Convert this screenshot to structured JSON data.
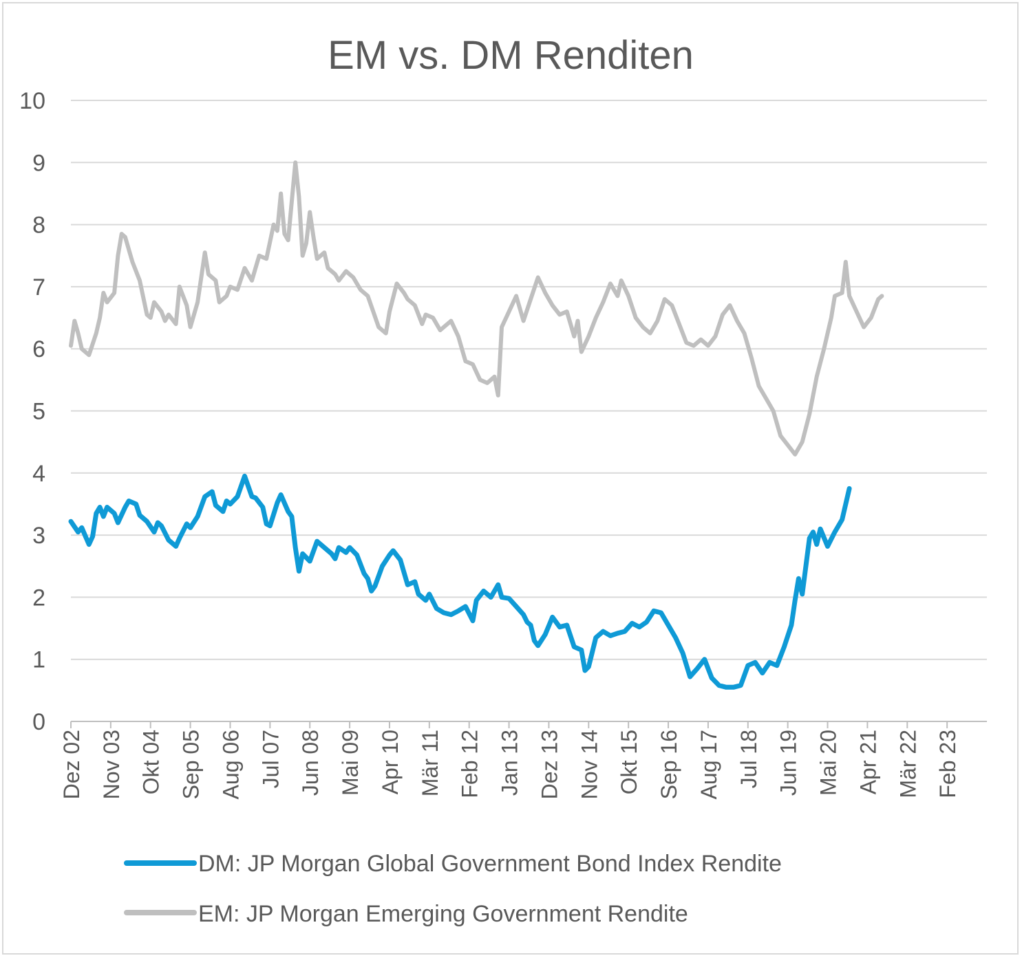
{
  "chart_data": {
    "type": "line",
    "title": "EM vs. DM Renditen",
    "xlabel": "",
    "ylabel": "",
    "ylim": [
      0,
      10
    ],
    "yticks": [
      0,
      1,
      2,
      3,
      4,
      5,
      6,
      7,
      8,
      9,
      10
    ],
    "grid": true,
    "legend_position": "bottom",
    "x_range": [
      "2002-12",
      "2024-01"
    ],
    "x_tick_labels": [
      {
        "label": "Dez 02",
        "date": "2002-12"
      },
      {
        "label": "Nov 03",
        "date": "2003-11"
      },
      {
        "label": "Okt 04",
        "date": "2004-10"
      },
      {
        "label": "Sep 05",
        "date": "2005-09"
      },
      {
        "label": "Aug 06",
        "date": "2006-08"
      },
      {
        "label": "Jul 07",
        "date": "2007-07"
      },
      {
        "label": "Jun 08",
        "date": "2008-06"
      },
      {
        "label": "Mai 09",
        "date": "2009-05"
      },
      {
        "label": "Apr 10",
        "date": "2010-04"
      },
      {
        "label": "Mär 11",
        "date": "2011-03"
      },
      {
        "label": "Feb 12",
        "date": "2012-02"
      },
      {
        "label": "Jan 13",
        "date": "2013-01"
      },
      {
        "label": "Dez 13",
        "date": "2013-12"
      },
      {
        "label": "Nov 14",
        "date": "2014-11"
      },
      {
        "label": "Okt 15",
        "date": "2015-10"
      },
      {
        "label": "Sep 16",
        "date": "2016-09"
      },
      {
        "label": "Aug 17",
        "date": "2017-08"
      },
      {
        "label": "Jul 18",
        "date": "2018-07"
      },
      {
        "label": "Jun 19",
        "date": "2019-06"
      },
      {
        "label": "Mai 20",
        "date": "2020-05"
      },
      {
        "label": "Apr 21",
        "date": "2021-04"
      },
      {
        "label": "Mär 22",
        "date": "2022-03"
      },
      {
        "label": "Feb 23",
        "date": "2023-02"
      }
    ],
    "series": [
      {
        "name": "DM: JP Morgan Global Government Bond Index Rendite",
        "color": "#0f9ad6",
        "points": [
          [
            "2002-12",
            3.22
          ],
          [
            "2003-02",
            3.05
          ],
          [
            "2003-03",
            3.12
          ],
          [
            "2003-05",
            2.85
          ],
          [
            "2003-06",
            2.98
          ],
          [
            "2003-07",
            3.35
          ],
          [
            "2003-08",
            3.45
          ],
          [
            "2003-09",
            3.3
          ],
          [
            "2003-10",
            3.45
          ],
          [
            "2003-12",
            3.35
          ],
          [
            "2004-01",
            3.2
          ],
          [
            "2004-03",
            3.45
          ],
          [
            "2004-04",
            3.55
          ],
          [
            "2004-06",
            3.5
          ],
          [
            "2004-07",
            3.32
          ],
          [
            "2004-09",
            3.22
          ],
          [
            "2004-11",
            3.05
          ],
          [
            "2004-12",
            3.2
          ],
          [
            "2005-01",
            3.15
          ],
          [
            "2005-03",
            2.92
          ],
          [
            "2005-05",
            2.82
          ],
          [
            "2005-06",
            2.95
          ],
          [
            "2005-08",
            3.18
          ],
          [
            "2005-09",
            3.12
          ],
          [
            "2005-11",
            3.3
          ],
          [
            "2006-01",
            3.62
          ],
          [
            "2006-03",
            3.7
          ],
          [
            "2006-04",
            3.48
          ],
          [
            "2006-06",
            3.38
          ],
          [
            "2006-07",
            3.55
          ],
          [
            "2006-08",
            3.5
          ],
          [
            "2006-10",
            3.62
          ],
          [
            "2006-12",
            3.95
          ],
          [
            "2007-02",
            3.62
          ],
          [
            "2007-03",
            3.6
          ],
          [
            "2007-05",
            3.45
          ],
          [
            "2007-06",
            3.18
          ],
          [
            "2007-07",
            3.15
          ],
          [
            "2007-09",
            3.52
          ],
          [
            "2007-10",
            3.65
          ],
          [
            "2007-12",
            3.38
          ],
          [
            "2008-01",
            3.3
          ],
          [
            "2008-02",
            2.8
          ],
          [
            "2008-03",
            2.42
          ],
          [
            "2008-04",
            2.7
          ],
          [
            "2008-06",
            2.58
          ],
          [
            "2008-08",
            2.9
          ],
          [
            "2008-10",
            2.8
          ],
          [
            "2008-12",
            2.7
          ],
          [
            "2009-01",
            2.62
          ],
          [
            "2009-02",
            2.8
          ],
          [
            "2009-04",
            2.72
          ],
          [
            "2009-05",
            2.8
          ],
          [
            "2009-07",
            2.68
          ],
          [
            "2009-09",
            2.38
          ],
          [
            "2009-10",
            2.3
          ],
          [
            "2009-11",
            2.1
          ],
          [
            "2009-12",
            2.18
          ],
          [
            "2010-02",
            2.5
          ],
          [
            "2010-04",
            2.68
          ],
          [
            "2010-05",
            2.75
          ],
          [
            "2010-07",
            2.6
          ],
          [
            "2010-09",
            2.2
          ],
          [
            "2010-11",
            2.25
          ],
          [
            "2010-12",
            2.05
          ],
          [
            "2011-02",
            1.95
          ],
          [
            "2011-03",
            2.05
          ],
          [
            "2011-05",
            1.82
          ],
          [
            "2011-07",
            1.75
          ],
          [
            "2011-09",
            1.72
          ],
          [
            "2011-11",
            1.78
          ],
          [
            "2012-01",
            1.85
          ],
          [
            "2012-03",
            1.62
          ],
          [
            "2012-04",
            1.95
          ],
          [
            "2012-06",
            2.1
          ],
          [
            "2012-08",
            2.0
          ],
          [
            "2012-10",
            2.2
          ],
          [
            "2012-11",
            2.0
          ],
          [
            "2013-01",
            1.98
          ],
          [
            "2013-03",
            1.85
          ],
          [
            "2013-05",
            1.72
          ],
          [
            "2013-06",
            1.6
          ],
          [
            "2013-07",
            1.55
          ],
          [
            "2013-08",
            1.3
          ],
          [
            "2013-09",
            1.22
          ],
          [
            "2013-11",
            1.4
          ],
          [
            "2014-01",
            1.68
          ],
          [
            "2014-03",
            1.52
          ],
          [
            "2014-05",
            1.55
          ],
          [
            "2014-07",
            1.2
          ],
          [
            "2014-09",
            1.15
          ],
          [
            "2014-10",
            0.82
          ],
          [
            "2014-11",
            0.88
          ],
          [
            "2015-01",
            1.35
          ],
          [
            "2015-03",
            1.45
          ],
          [
            "2015-05",
            1.38
          ],
          [
            "2015-07",
            1.42
          ],
          [
            "2015-09",
            1.45
          ],
          [
            "2015-11",
            1.58
          ],
          [
            "2016-01",
            1.52
          ],
          [
            "2016-03",
            1.6
          ],
          [
            "2016-05",
            1.78
          ],
          [
            "2016-07",
            1.75
          ],
          [
            "2016-09",
            1.55
          ],
          [
            "2016-11",
            1.35
          ],
          [
            "2017-01",
            1.1
          ],
          [
            "2017-03",
            0.72
          ],
          [
            "2017-05",
            0.85
          ],
          [
            "2017-07",
            1.0
          ],
          [
            "2017-09",
            0.7
          ],
          [
            "2017-11",
            0.58
          ],
          [
            "2018-01",
            0.55
          ],
          [
            "2018-03",
            0.55
          ],
          [
            "2018-05",
            0.58
          ],
          [
            "2018-07",
            0.9
          ],
          [
            "2018-09",
            0.95
          ],
          [
            "2018-11",
            0.78
          ],
          [
            "2019-01",
            0.95
          ],
          [
            "2019-03",
            0.9
          ],
          [
            "2019-05",
            1.2
          ],
          [
            "2019-07",
            1.55
          ],
          [
            "2019-08",
            1.95
          ],
          [
            "2019-09",
            2.3
          ],
          [
            "2019-10",
            2.05
          ],
          [
            "2019-12",
            2.95
          ],
          [
            "2020-01",
            3.05
          ],
          [
            "2020-02",
            2.85
          ],
          [
            "2020-03",
            3.1
          ],
          [
            "2020-05",
            2.82
          ],
          [
            "2020-07",
            3.05
          ],
          [
            "2020-09",
            3.25
          ],
          [
            "2020-11",
            3.75
          ]
        ]
      },
      {
        "name": "EM: JP Morgan Emerging Government Rendite",
        "color": "#bfbfbf",
        "points": [
          [
            "2002-12",
            6.05
          ],
          [
            "2003-01",
            6.45
          ],
          [
            "2003-02",
            6.25
          ],
          [
            "2003-03",
            6.0
          ],
          [
            "2003-05",
            5.9
          ],
          [
            "2003-07",
            6.25
          ],
          [
            "2003-08",
            6.5
          ],
          [
            "2003-09",
            6.9
          ],
          [
            "2003-10",
            6.75
          ],
          [
            "2003-12",
            6.9
          ],
          [
            "2004-01",
            7.5
          ],
          [
            "2004-02",
            7.85
          ],
          [
            "2004-03",
            7.8
          ],
          [
            "2004-05",
            7.4
          ],
          [
            "2004-07",
            7.1
          ],
          [
            "2004-09",
            6.55
          ],
          [
            "2004-10",
            6.5
          ],
          [
            "2004-11",
            6.75
          ],
          [
            "2005-01",
            6.6
          ],
          [
            "2005-02",
            6.45
          ],
          [
            "2005-03",
            6.55
          ],
          [
            "2005-05",
            6.4
          ],
          [
            "2005-06",
            7.0
          ],
          [
            "2005-08",
            6.7
          ],
          [
            "2005-09",
            6.35
          ],
          [
            "2005-11",
            6.75
          ],
          [
            "2006-01",
            7.55
          ],
          [
            "2006-02",
            7.2
          ],
          [
            "2006-04",
            7.1
          ],
          [
            "2006-05",
            6.75
          ],
          [
            "2006-07",
            6.85
          ],
          [
            "2006-08",
            7.0
          ],
          [
            "2006-10",
            6.95
          ],
          [
            "2006-12",
            7.3
          ],
          [
            "2007-02",
            7.1
          ],
          [
            "2007-04",
            7.5
          ],
          [
            "2007-06",
            7.45
          ],
          [
            "2007-08",
            8.0
          ],
          [
            "2007-09",
            7.9
          ],
          [
            "2007-10",
            8.5
          ],
          [
            "2007-11",
            7.85
          ],
          [
            "2007-12",
            7.75
          ],
          [
            "2008-02",
            9.0
          ],
          [
            "2008-03",
            8.45
          ],
          [
            "2008-04",
            7.5
          ],
          [
            "2008-05",
            7.7
          ],
          [
            "2008-06",
            8.2
          ],
          [
            "2008-07",
            7.8
          ],
          [
            "2008-08",
            7.45
          ],
          [
            "2008-10",
            7.55
          ],
          [
            "2008-11",
            7.3
          ],
          [
            "2009-01",
            7.2
          ],
          [
            "2009-02",
            7.1
          ],
          [
            "2009-04",
            7.25
          ],
          [
            "2009-06",
            7.15
          ],
          [
            "2009-08",
            6.95
          ],
          [
            "2009-10",
            6.85
          ],
          [
            "2010-01",
            6.35
          ],
          [
            "2010-03",
            6.25
          ],
          [
            "2010-04",
            6.6
          ],
          [
            "2010-06",
            7.05
          ],
          [
            "2010-08",
            6.9
          ],
          [
            "2010-09",
            6.8
          ],
          [
            "2010-11",
            6.7
          ],
          [
            "2011-01",
            6.4
          ],
          [
            "2011-02",
            6.55
          ],
          [
            "2011-04",
            6.5
          ],
          [
            "2011-06",
            6.3
          ],
          [
            "2011-08",
            6.4
          ],
          [
            "2011-09",
            6.45
          ],
          [
            "2011-11",
            6.2
          ],
          [
            "2012-01",
            5.8
          ],
          [
            "2012-03",
            5.75
          ],
          [
            "2012-05",
            5.5
          ],
          [
            "2012-07",
            5.45
          ],
          [
            "2012-09",
            5.55
          ],
          [
            "2012-10",
            5.25
          ],
          [
            "2012-11",
            6.35
          ],
          [
            "2013-01",
            6.6
          ],
          [
            "2013-03",
            6.85
          ],
          [
            "2013-05",
            6.45
          ],
          [
            "2013-07",
            6.8
          ],
          [
            "2013-09",
            7.15
          ],
          [
            "2013-11",
            6.9
          ],
          [
            "2014-01",
            6.7
          ],
          [
            "2014-03",
            6.55
          ],
          [
            "2014-05",
            6.6
          ],
          [
            "2014-07",
            6.2
          ],
          [
            "2014-08",
            6.45
          ],
          [
            "2014-09",
            5.95
          ],
          [
            "2014-11",
            6.2
          ],
          [
            "2015-01",
            6.5
          ],
          [
            "2015-03",
            6.75
          ],
          [
            "2015-05",
            7.05
          ],
          [
            "2015-07",
            6.85
          ],
          [
            "2015-08",
            7.1
          ],
          [
            "2015-10",
            6.85
          ],
          [
            "2015-12",
            6.5
          ],
          [
            "2016-02",
            6.35
          ],
          [
            "2016-04",
            6.25
          ],
          [
            "2016-06",
            6.45
          ],
          [
            "2016-08",
            6.8
          ],
          [
            "2016-10",
            6.7
          ],
          [
            "2016-12",
            6.4
          ],
          [
            "2017-02",
            6.1
          ],
          [
            "2017-04",
            6.05
          ],
          [
            "2017-06",
            6.15
          ],
          [
            "2017-08",
            6.05
          ],
          [
            "2017-10",
            6.2
          ],
          [
            "2017-12",
            6.55
          ],
          [
            "2018-02",
            6.7
          ],
          [
            "2018-04",
            6.45
          ],
          [
            "2018-06",
            6.25
          ],
          [
            "2018-08",
            5.85
          ],
          [
            "2018-10",
            5.4
          ],
          [
            "2018-12",
            5.2
          ],
          [
            "2019-02",
            5.0
          ],
          [
            "2019-04",
            4.6
          ],
          [
            "2019-06",
            4.45
          ],
          [
            "2019-08",
            4.3
          ],
          [
            "2019-10",
            4.5
          ],
          [
            "2019-12",
            4.95
          ],
          [
            "2020-02",
            5.55
          ],
          [
            "2020-04",
            6.0
          ],
          [
            "2020-06",
            6.5
          ],
          [
            "2020-07",
            6.85
          ],
          [
            "2020-09",
            6.9
          ],
          [
            "2020-10",
            7.4
          ],
          [
            "2020-11",
            6.85
          ],
          [
            "2021-01",
            6.6
          ],
          [
            "2021-03",
            6.35
          ],
          [
            "2021-05",
            6.5
          ],
          [
            "2021-07",
            6.8
          ],
          [
            "2021-08",
            6.85
          ]
        ]
      }
    ]
  }
}
